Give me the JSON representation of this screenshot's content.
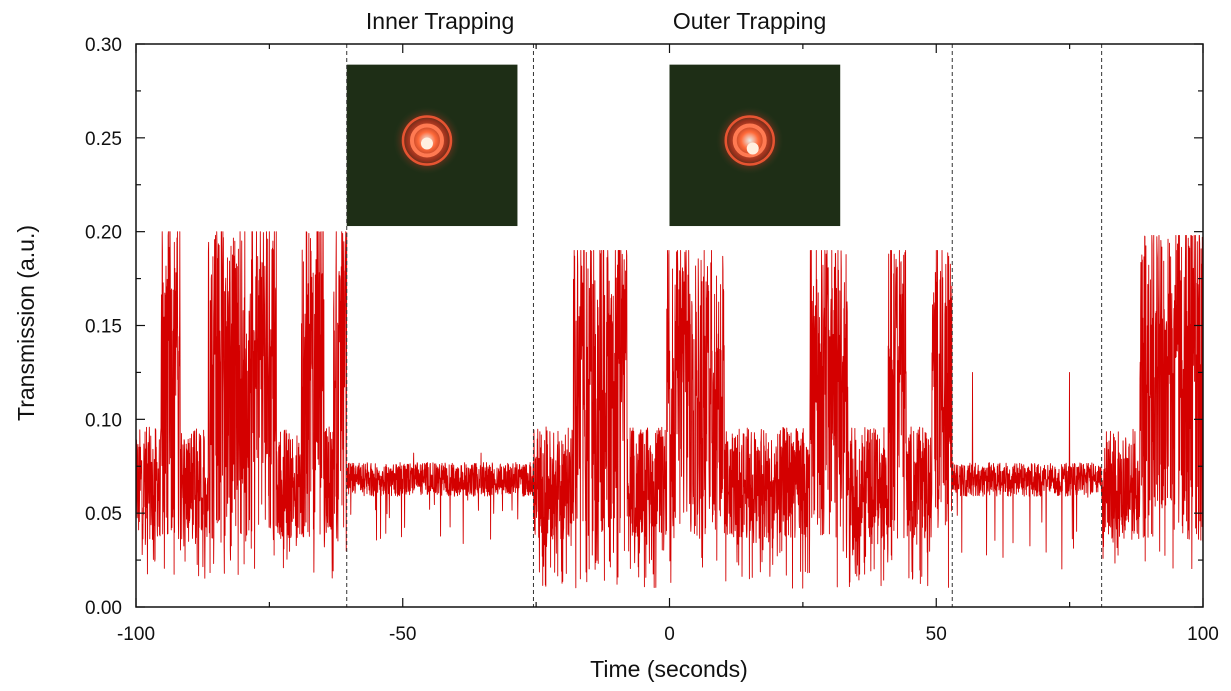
{
  "chart_data": {
    "type": "line",
    "xlabel": "Time (seconds)",
    "ylabel": "Transmission (a.u.)",
    "xlim": [
      -100,
      100
    ],
    "ylim": [
      0.0,
      0.3
    ],
    "x_ticks": [
      "-100",
      "-50",
      "0",
      "50",
      "100"
    ],
    "y_ticks": [
      "0.00",
      "0.05",
      "0.10",
      "0.15",
      "0.20",
      "0.25",
      "0.30"
    ],
    "grid": false,
    "series": [
      {
        "color": "#d40000",
        "segments": [
          {
            "x": [
              -100,
              -60.5
            ],
            "regime": "switching",
            "baseline": 0.066,
            "low": 0.015,
            "high": 0.2
          },
          {
            "x": [
              -60.5,
              -25.5
            ],
            "regime": "trapped",
            "baseline": 0.068,
            "low": 0.03,
            "high": 0.082
          },
          {
            "x": [
              -25.5,
              53
            ],
            "regime": "switching",
            "baseline": 0.066,
            "low": 0.01,
            "high": 0.19
          },
          {
            "x": [
              53,
              81
            ],
            "regime": "trapped",
            "baseline": 0.068,
            "low": 0.02,
            "high": 0.125
          },
          {
            "x": [
              81,
              100
            ],
            "regime": "switching",
            "baseline": 0.066,
            "low": 0.02,
            "high": 0.198
          }
        ]
      }
    ],
    "dashed_lines_x": [
      -60.5,
      -25.5,
      53,
      81
    ],
    "annotations": [
      {
        "text": "Inner Trapping",
        "x": -43
      },
      {
        "text": "Outer Trapping",
        "x": 15
      }
    ],
    "insets": [
      {
        "name": "inner-trapping-image",
        "x_range": [
          -60.5,
          -28.5
        ],
        "y_range": [
          0.203,
          0.289
        ]
      },
      {
        "name": "outer-trapping-image",
        "x_range": [
          0,
          32
        ],
        "y_range": [
          0.203,
          0.289
        ]
      }
    ]
  }
}
